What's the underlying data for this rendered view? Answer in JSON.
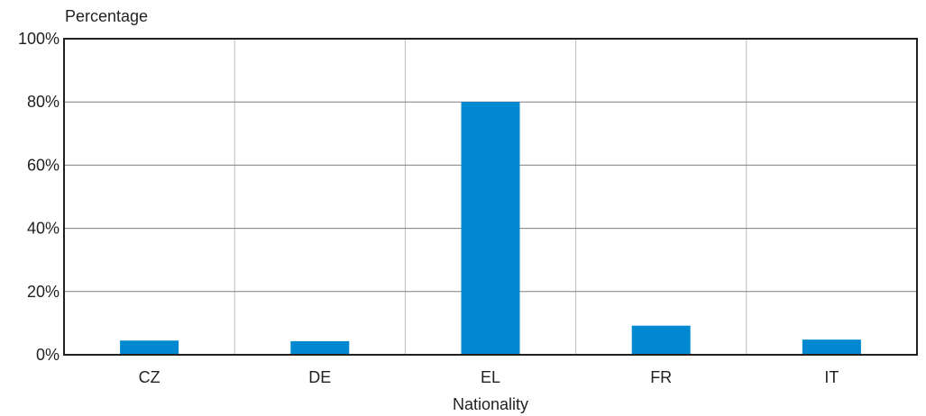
{
  "chart_data": {
    "type": "bar",
    "categories": [
      "CZ",
      "DE",
      "EL",
      "FR",
      "IT"
    ],
    "values": [
      4.5,
      4.3,
      80,
      9.2,
      4.8
    ],
    "ylabel": "Percentage",
    "xlabel": "Nationality",
    "ylim": [
      0,
      100
    ],
    "yticks": [
      0,
      20,
      40,
      60,
      80,
      100
    ],
    "ytick_labels": [
      "0%",
      "20%",
      "40%",
      "60%",
      "80%",
      "100%"
    ],
    "grid": true,
    "bar_color": "#0089d0",
    "grid_color": "#bcbdc0",
    "axis_color": "#231f20"
  }
}
